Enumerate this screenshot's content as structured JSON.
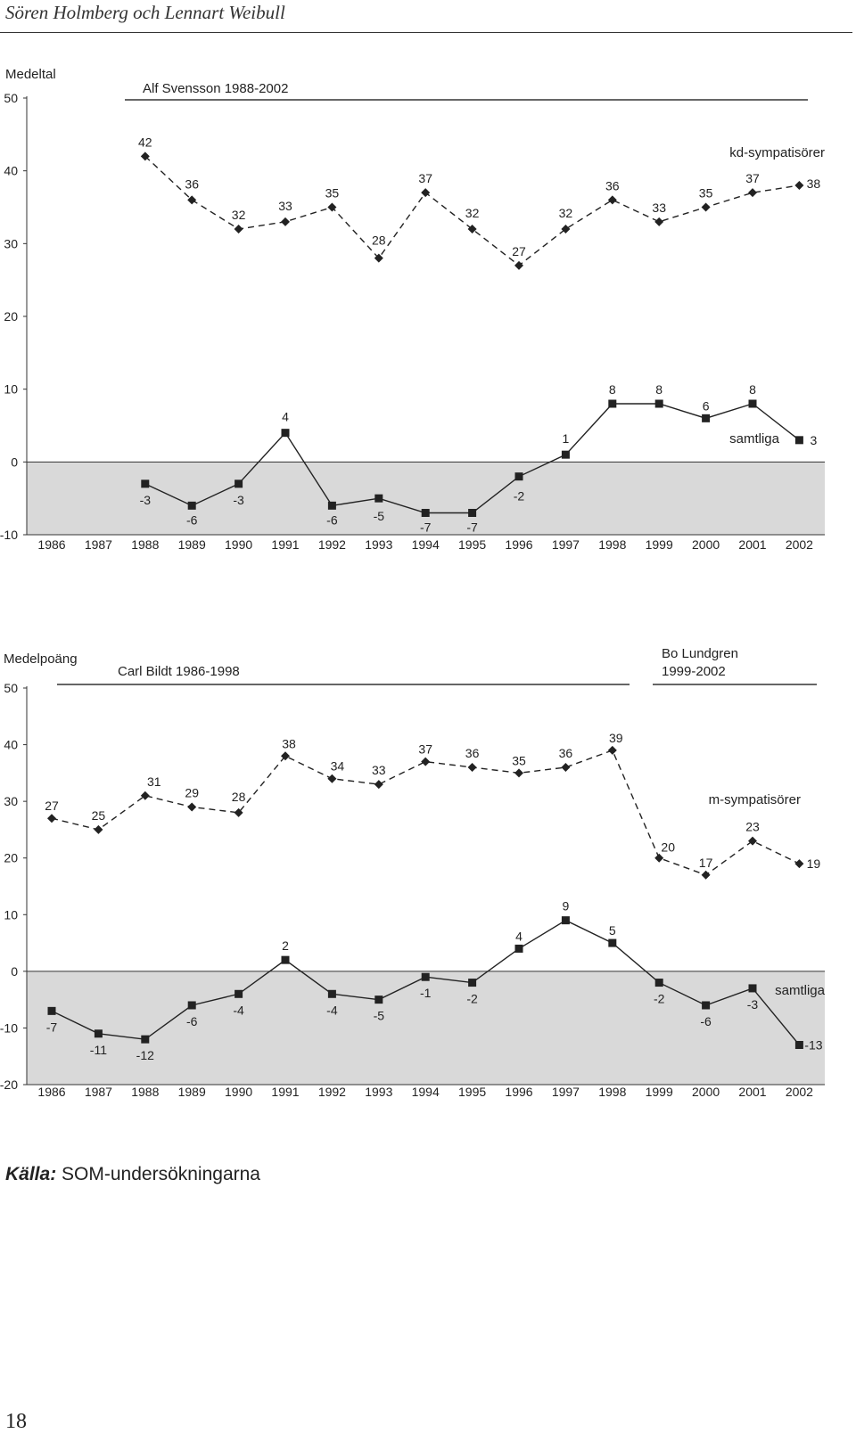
{
  "header": {
    "title": "Sören Holmberg och Lennart Weibull"
  },
  "footer": {
    "source_label": "Källa:",
    "source_text": "SOM-undersökningarna",
    "page_number": "18"
  },
  "chart_data": [
    {
      "type": "line",
      "ylabel": "Medeltal",
      "ylim": [
        -10,
        50
      ],
      "yticks": [
        -10,
        0,
        10,
        20,
        30,
        40,
        50
      ],
      "negative_region_shaded": true,
      "x": [
        "1986",
        "1987",
        "1988",
        "1989",
        "1990",
        "1991",
        "1992",
        "1993",
        "1994",
        "1995",
        "1996",
        "1997",
        "1998",
        "1999",
        "2000",
        "2001",
        "2002"
      ],
      "periods": [
        {
          "label": "Alf Svensson 1988-2002",
          "from": "1988",
          "to": "2002"
        }
      ],
      "series": [
        {
          "name": "kd-sympatisörer",
          "style": "dashed",
          "marker": "diamond",
          "values": [
            null,
            null,
            42,
            36,
            32,
            33,
            35,
            28,
            37,
            32,
            27,
            32,
            36,
            33,
            35,
            37,
            38
          ]
        },
        {
          "name": "samtliga",
          "style": "solid",
          "marker": "square",
          "values": [
            null,
            null,
            -3,
            -6,
            -3,
            4,
            -6,
            -5,
            -7,
            -7,
            -2,
            1,
            8,
            8,
            6,
            8,
            3
          ]
        }
      ]
    },
    {
      "type": "line",
      "ylabel": "Medelpoäng",
      "ylim": [
        -20,
        50
      ],
      "yticks": [
        -20,
        -10,
        0,
        10,
        20,
        30,
        40,
        50
      ],
      "negative_region_shaded": true,
      "x": [
        "1986",
        "1987",
        "1988",
        "1989",
        "1990",
        "1991",
        "1992",
        "1993",
        "1994",
        "1995",
        "1996",
        "1997",
        "1998",
        "1999",
        "2000",
        "2001",
        "2002"
      ],
      "periods": [
        {
          "label": "Carl Bildt 1986-1998",
          "from": "1986",
          "to": "1998"
        },
        {
          "label": "Bo Lundgren",
          "label2": "1999-2002",
          "from": "1999",
          "to": "2002"
        }
      ],
      "series": [
        {
          "name": "m-sympatisörer",
          "style": "dashed",
          "marker": "diamond",
          "values": [
            27,
            25,
            31,
            29,
            28,
            38,
            34,
            33,
            37,
            36,
            35,
            36,
            39,
            20,
            17,
            23,
            19
          ]
        },
        {
          "name": "samtliga",
          "style": "solid",
          "marker": "square",
          "values": [
            -7,
            -11,
            -12,
            -6,
            -4,
            2,
            -4,
            -5,
            -1,
            -2,
            4,
            9,
            5,
            -2,
            -6,
            -3,
            -13
          ]
        }
      ]
    }
  ]
}
